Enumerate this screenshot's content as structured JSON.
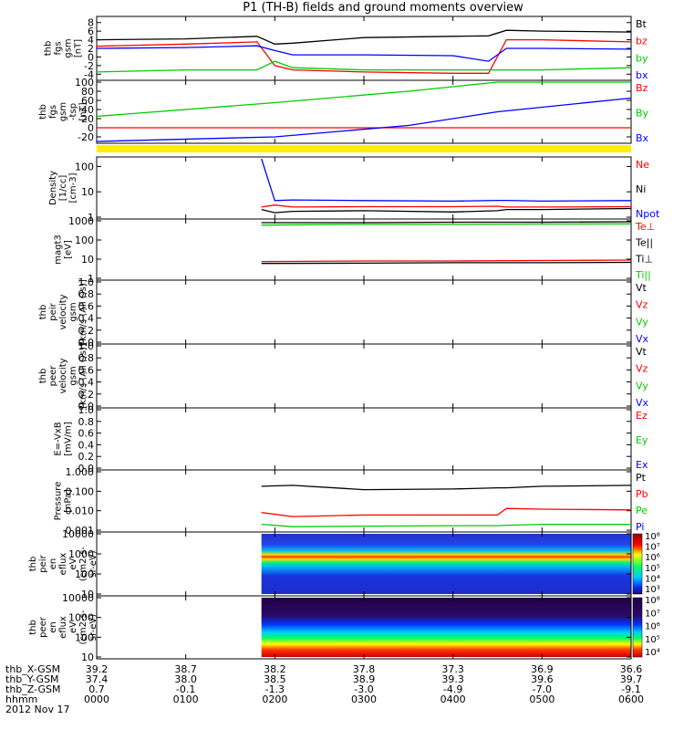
{
  "title": "P1 (TH-B) fields and ground moments overview",
  "panels": [
    {
      "id": "fgs-gsm",
      "ylabel": [
        "thb",
        "fgs",
        "gsm",
        "[nT]"
      ],
      "ticks": [
        "8",
        "6",
        "4",
        "2",
        "0",
        "-2",
        "-4"
      ],
      "tick_values": [
        8,
        6,
        4,
        2,
        0,
        -2,
        -4
      ],
      "legend": [
        {
          "label": "Bt",
          "color": "#000000"
        },
        {
          "label": "bz",
          "color": "#ff0000"
        },
        {
          "label": "by",
          "color": "#00cc00"
        },
        {
          "label": "bx",
          "color": "#0000ff"
        }
      ]
    },
    {
      "id": "fgs-gse",
      "ylabel": [
        "thb",
        "fgs",
        "gsm",
        "-tsp",
        "[nT]"
      ],
      "ticks": [
        "100",
        "80",
        "60",
        "40",
        "20",
        "0",
        "-20"
      ],
      "tick_values": [
        100,
        80,
        60,
        40,
        20,
        0,
        -20
      ],
      "legend": [
        {
          "label": "Bz",
          "color": "#ff0000"
        },
        {
          "label": "By",
          "color": "#00cc00"
        },
        {
          "label": "Bx",
          "color": "#0000ff"
        }
      ]
    },
    {
      "id": "density",
      "ylabel": [
        "Density",
        "[1/cc]",
        "[cm-3]"
      ],
      "ticks": [
        "100",
        "10",
        "1"
      ],
      "tick_values": [
        100,
        10,
        1
      ],
      "legend": [
        {
          "label": "Ne",
          "color": "#ff0000"
        },
        {
          "label": "Ni",
          "color": "#000000"
        },
        {
          "label": "Npot",
          "color": "#0000ff"
        }
      ]
    },
    {
      "id": "temperature",
      "ylabel": [
        "magt3",
        "[eV]"
      ],
      "ticks": [
        "1000",
        "100",
        "10",
        "1"
      ],
      "tick_values": [
        1000,
        100,
        10,
        1
      ],
      "legend": [
        {
          "label": "Te⊥",
          "color": "#ff0000"
        },
        {
          "label": "Te||",
          "color": "#000000"
        },
        {
          "label": "Ti⊥",
          "color": "#000000"
        },
        {
          "label": "Ti||",
          "color": "#00cc00"
        }
      ]
    },
    {
      "id": "peir-velocity",
      "ylabel": [
        "thb",
        "peir",
        "velocity",
        "gsm",
        "[km/s (All Qs)]"
      ],
      "ticks": [
        "1.0",
        "0.8",
        "0.6",
        "0.4",
        "0.2",
        "0.0"
      ],
      "tick_values": [
        1.0,
        0.8,
        0.6,
        0.4,
        0.2,
        0.0
      ],
      "legend": [
        {
          "label": "Vt",
          "color": "#000000"
        },
        {
          "label": "Vz",
          "color": "#ff0000"
        },
        {
          "label": "Vy",
          "color": "#00cc00"
        },
        {
          "label": "Vx",
          "color": "#0000ff"
        }
      ]
    },
    {
      "id": "peer-velocity",
      "ylabel": [
        "thb",
        "peer",
        "velocity",
        "gsm",
        "[km/s (All Qs)]"
      ],
      "ticks": [
        "1.0",
        "0.8",
        "0.6",
        "0.4",
        "0.2",
        "0.0"
      ],
      "tick_values": [
        1.0,
        0.8,
        0.6,
        0.4,
        0.2,
        0.0
      ],
      "legend": [
        {
          "label": "Vt",
          "color": "#000000"
        },
        {
          "label": "Vz",
          "color": "#ff0000"
        },
        {
          "label": "Vy",
          "color": "#00cc00"
        },
        {
          "label": "Vx",
          "color": "#0000ff"
        }
      ]
    },
    {
      "id": "e-field",
      "ylabel": [
        "E=-VxB",
        "[mV/m]"
      ],
      "ticks": [
        "1.0",
        "0.8",
        "0.6",
        "0.4",
        "0.2",
        "0.0"
      ],
      "tick_values": [
        1.0,
        0.8,
        0.6,
        0.4,
        0.2,
        0.0
      ],
      "legend": [
        {
          "label": "Ez",
          "color": "#ff0000"
        },
        {
          "label": "Ey",
          "color": "#00cc00"
        },
        {
          "label": "Ex",
          "color": "#0000ff"
        }
      ]
    },
    {
      "id": "pressure",
      "ylabel": [
        "Pressure",
        "[nPa]"
      ],
      "ticks": [
        "1.000",
        "0.100",
        "0.010",
        "0.001"
      ],
      "tick_values": [
        1.0,
        0.1,
        0.01,
        0.001
      ],
      "legend": [
        {
          "label": "Pt",
          "color": "#000000"
        },
        {
          "label": "Pb",
          "color": "#ff0000"
        },
        {
          "label": "Pe",
          "color": "#00cc00"
        },
        {
          "label": "Pi",
          "color": "#0000ff"
        }
      ]
    },
    {
      "id": "peir-eflux",
      "ylabel": [
        "thb",
        "peir",
        "en",
        "eflux",
        "eV",
        "(cm2-s-",
        "sr-eV)"
      ],
      "ticks": [
        "10000",
        "1000",
        "100",
        "10"
      ],
      "tick_values": [
        10000,
        1000,
        100,
        10
      ],
      "colorbar": [
        "10⁸",
        "10⁷",
        "10⁶",
        "10⁵",
        "10⁴",
        "10³"
      ],
      "legend": []
    },
    {
      "id": "peer-eflux",
      "ylabel": [
        "thb",
        "peer",
        "en",
        "eflux",
        "eV",
        "(cm2-s-",
        "sr-eV)"
      ],
      "ticks": [
        "10000",
        "1000",
        "100",
        "10"
      ],
      "tick_values": [
        10000,
        1000,
        100,
        10
      ],
      "colorbar": [
        "10⁸",
        "10⁷",
        "10⁶",
        "10⁵",
        "10⁴"
      ],
      "legend": []
    }
  ],
  "xaxis": {
    "row_labels": [
      "thb_X-GSM",
      "thb_Y-GSM",
      "thb_Z-GSM",
      "hhmm",
      "2012 Nov 17"
    ],
    "ticks": [
      {
        "x": "39.2",
        "y": "37.4",
        "z": "0.7",
        "t": "0000"
      },
      {
        "x": "38.7",
        "y": "38.0",
        "z": "-0.1",
        "t": "0100"
      },
      {
        "x": "38.2",
        "y": "38.5",
        "z": "-1.3",
        "t": "0200"
      },
      {
        "x": "37.8",
        "y": "38.9",
        "z": "-3.0",
        "t": "0300"
      },
      {
        "x": "37.3",
        "y": "39.3",
        "z": "-4.9",
        "t": "0400"
      },
      {
        "x": "36.9",
        "y": "39.6",
        "z": "-7.0",
        "t": "0500"
      },
      {
        "x": "36.6",
        "y": "39.7",
        "z": "-9.1",
        "t": "0600"
      }
    ]
  },
  "chart_data": [
    {
      "type": "line",
      "title": "P1 (TH-B) fields and ground moments overview",
      "ylabel": "thb fgs gsm [nT]",
      "ylim": [
        -5,
        9
      ],
      "x_hours": [
        0,
        1,
        1.8,
        2,
        2.2,
        3,
        4,
        4.4,
        4.6,
        5,
        6
      ],
      "series": [
        {
          "name": "Bt",
          "values": [
            4,
            4.2,
            4.8,
            3,
            3.2,
            4.5,
            4.8,
            4.9,
            6.2,
            6,
            5.8
          ]
        },
        {
          "name": "bz",
          "values": [
            2.5,
            3,
            3.5,
            -2,
            -3,
            -3.5,
            -3.8,
            -3.8,
            4,
            4,
            3.5
          ]
        },
        {
          "name": "by",
          "values": [
            -3.5,
            -3,
            -3,
            -1,
            -2.5,
            -3,
            -3,
            -3,
            -3,
            -3,
            -2.5
          ]
        },
        {
          "name": "bx",
          "values": [
            2,
            2.2,
            2.6,
            1.5,
            0.5,
            0.5,
            0.3,
            -1,
            2,
            2,
            1.8
          ]
        }
      ]
    },
    {
      "type": "line",
      "ylabel": "thb fgs gsm-tsp [nT]",
      "ylim": [
        -30,
        100
      ],
      "x_hours": [
        0,
        2,
        3.5,
        4.5,
        6
      ],
      "series": [
        {
          "name": "Bz",
          "values": [
            0,
            0,
            0,
            0,
            0
          ]
        },
        {
          "name": "By",
          "values": [
            25,
            55,
            80,
            100,
            100
          ]
        },
        {
          "name": "Bx",
          "values": [
            -30,
            -20,
            5,
            35,
            65
          ]
        }
      ]
    },
    {
      "type": "line",
      "ylabel": "Density [1/cc]",
      "yscale": "log",
      "ylim": [
        1,
        200
      ],
      "x_hours": [
        1.85,
        2,
        2.2,
        3,
        4,
        4.5,
        4.6,
        5,
        6
      ],
      "series": [
        {
          "name": "Ne",
          "values": [
            2.5,
            3,
            2.5,
            2.6,
            2.6,
            2.7,
            2.5,
            2.5,
            2.6
          ]
        },
        {
          "name": "Ni",
          "values": [
            2,
            1.5,
            1.7,
            1.8,
            1.6,
            1.8,
            2,
            2,
            2.2
          ]
        },
        {
          "name": "Npot",
          "values": [
            200,
            4.5,
            4.8,
            4.5,
            4.3,
            4.6,
            4.6,
            4.3,
            4.5
          ]
        }
      ]
    },
    {
      "type": "line",
      "ylabel": "magt3 [eV]",
      "yscale": "log",
      "ylim": [
        1,
        1000
      ],
      "x_hours": [
        1.85,
        3,
        4,
        5,
        6
      ],
      "series": [
        {
          "name": "Te⊥",
          "values": [
            7.5,
            8,
            8,
            8.5,
            9
          ]
        },
        {
          "name": "Te||",
          "values": [
            6,
            6.2,
            6.5,
            6.5,
            6.8
          ]
        },
        {
          "name": "Ti||",
          "values": [
            600,
            650,
            650,
            680,
            700
          ]
        },
        {
          "name": "Ti⊥",
          "values": [
            800,
            800,
            850,
            850,
            900
          ]
        }
      ]
    },
    {
      "type": "line",
      "ylabel": "Pressure [nPa]",
      "yscale": "log",
      "ylim": [
        0.001,
        1
      ],
      "x_hours": [
        1.85,
        2.2,
        3,
        4,
        4.5,
        4.6,
        5,
        6
      ],
      "series": [
        {
          "name": "Pt",
          "values": [
            0.18,
            0.2,
            0.12,
            0.13,
            0.15,
            0.15,
            0.18,
            0.2
          ]
        },
        {
          "name": "Pb",
          "values": [
            0.008,
            0.005,
            0.006,
            0.006,
            0.006,
            0.013,
            0.012,
            0.011
          ]
        },
        {
          "name": "Pe",
          "values": [
            0.002,
            0.0015,
            0.0016,
            0.0017,
            0.0017,
            0.0018,
            0.002,
            0.002
          ]
        }
      ]
    }
  ]
}
